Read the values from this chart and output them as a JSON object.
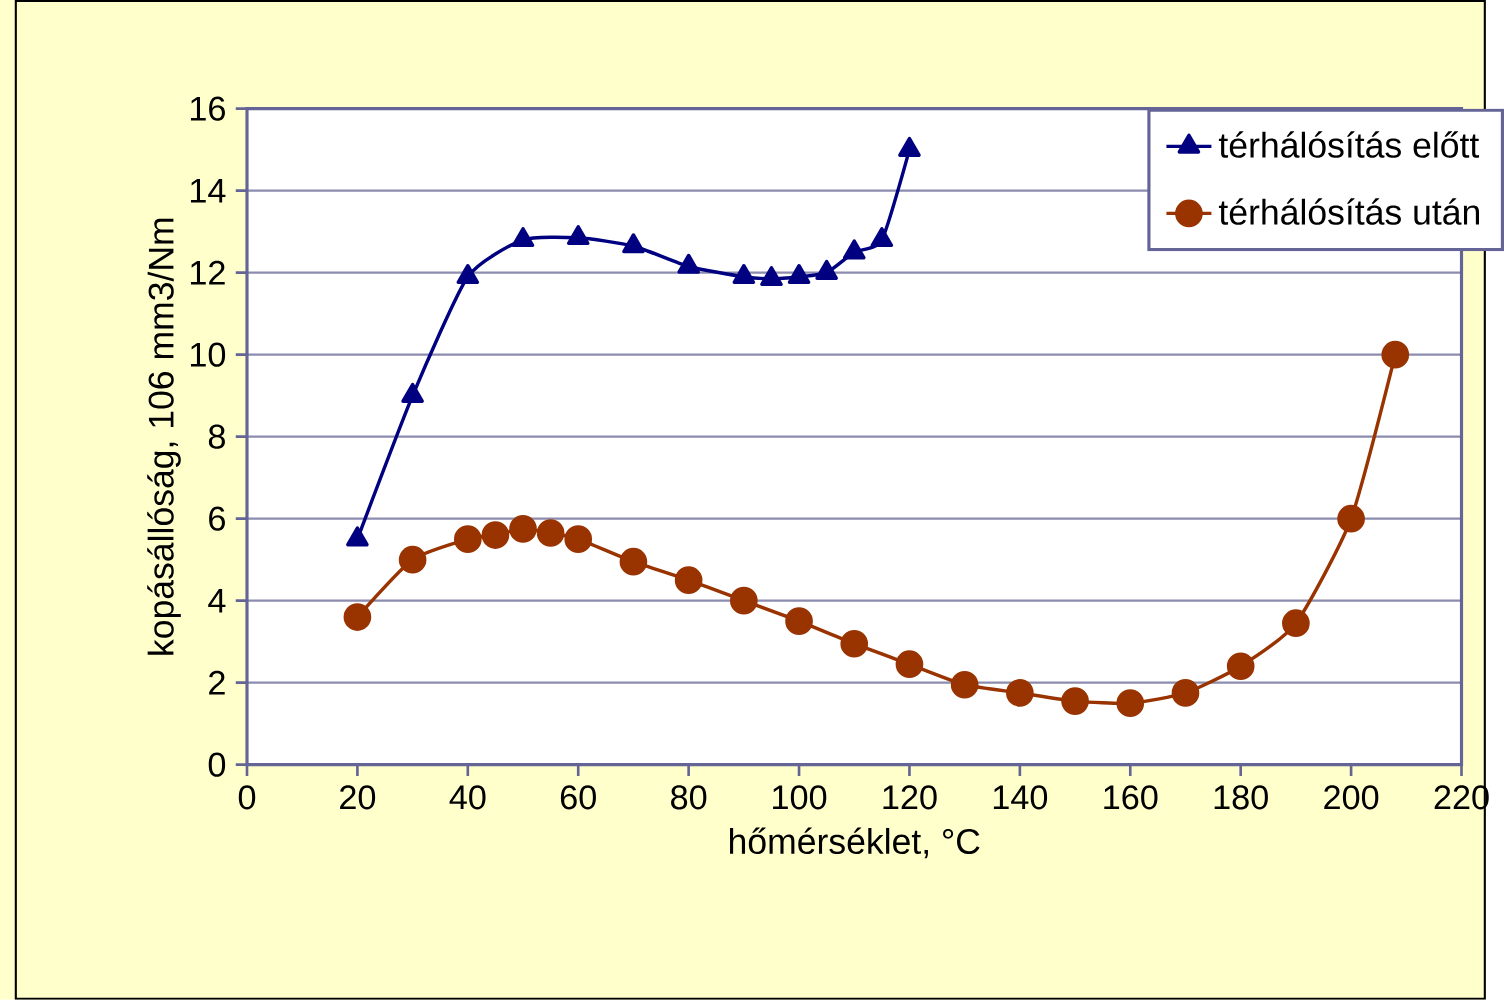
{
  "chart_data": {
    "type": "line",
    "xlabel": "hőmérséklet, °C",
    "ylabel": "kopásállóság, 106 mm3/Nm",
    "xlim": [
      0,
      220
    ],
    "xticks": [
      0,
      20,
      40,
      60,
      80,
      100,
      120,
      140,
      160,
      180,
      200,
      220
    ],
    "ylim": [
      0,
      16
    ],
    "yticks": [
      0,
      2,
      4,
      6,
      8,
      10,
      12,
      14,
      16
    ],
    "grid": "y",
    "legend": "top right",
    "series": [
      {
        "name": "térhálósítás előtt",
        "color": "#000080",
        "marker": "triangle",
        "x": [
          20,
          30,
          40,
          50,
          60,
          70,
          80,
          90,
          95,
          100,
          105,
          110,
          115,
          120
        ],
        "values": [
          5.5,
          9.0,
          11.9,
          12.8,
          12.85,
          12.65,
          12.15,
          11.9,
          11.85,
          11.9,
          12.0,
          12.5,
          12.8,
          15.0
        ]
      },
      {
        "name": "térhálósítás után",
        "color": "#993300",
        "marker": "circle",
        "x": [
          20,
          30,
          40,
          45,
          50,
          55,
          60,
          70,
          80,
          90,
          100,
          110,
          120,
          130,
          140,
          150,
          160,
          170,
          180,
          190,
          200,
          208
        ],
        "values": [
          3.6,
          5.0,
          5.5,
          5.6,
          5.75,
          5.65,
          5.5,
          4.95,
          4.5,
          4.0,
          3.5,
          2.95,
          2.45,
          1.95,
          1.75,
          1.55,
          1.5,
          1.75,
          2.4,
          3.45,
          6.0,
          10.0
        ]
      }
    ]
  }
}
